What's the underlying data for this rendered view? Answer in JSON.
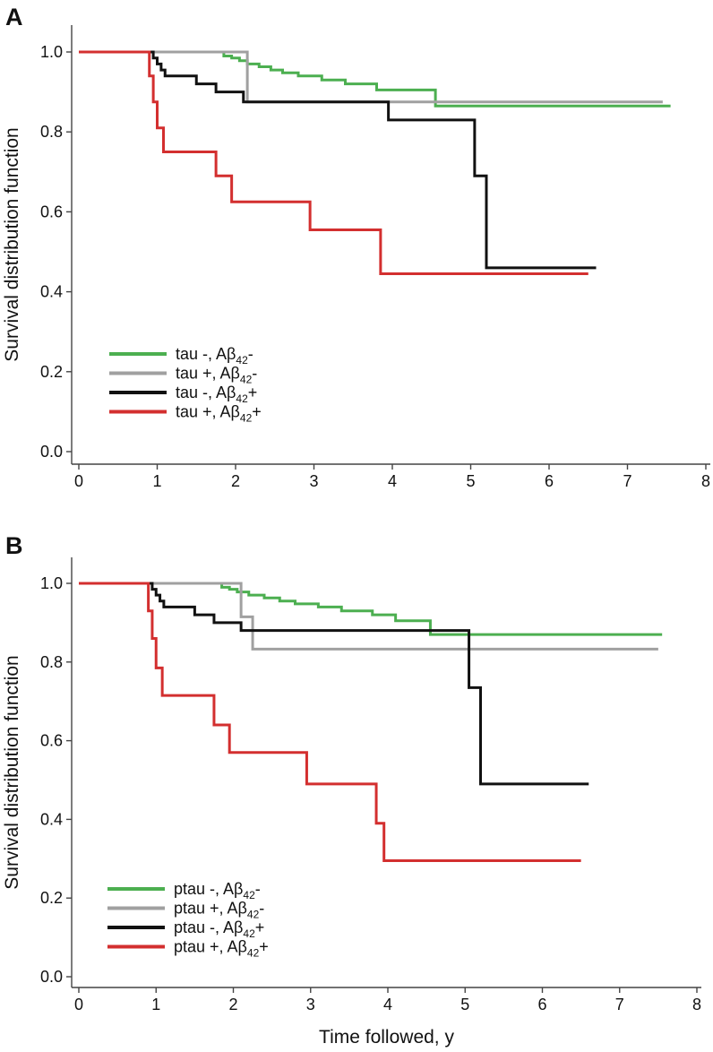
{
  "chart_data": [
    {
      "panel_label": "A",
      "type": "line",
      "title": "",
      "xlabel": "",
      "ylabel": "Survival distribution function",
      "xlim": [
        0,
        8
      ],
      "ylim": [
        0,
        1
      ],
      "xticks": [
        "0",
        "1",
        "2",
        "3",
        "4",
        "5",
        "6",
        "7",
        "8"
      ],
      "yticks": [
        "0.0",
        "0.2",
        "0.4",
        "0.6",
        "0.8",
        "1.0"
      ],
      "grid": false,
      "legend_position": "bottom-left",
      "series": [
        {
          "name": "tau -, Aβ42-",
          "legend": {
            "pre": "tau -, Aβ",
            "sub": "42",
            "post": "-"
          },
          "color": "#4caf50",
          "x": [
            0,
            1.85,
            1.95,
            2.05,
            2.15,
            2.3,
            2.45,
            2.6,
            2.8,
            3.1,
            3.4,
            3.8,
            4.55,
            7.55
          ],
          "y": [
            1.0,
            0.99,
            0.985,
            0.978,
            0.97,
            0.963,
            0.955,
            0.948,
            0.94,
            0.93,
            0.92,
            0.905,
            0.865,
            0.865
          ]
        },
        {
          "name": "tau +, Aβ42-",
          "legend": {
            "pre": "tau +, Aβ",
            "sub": "42",
            "post": "-"
          },
          "color": "#a0a0a0",
          "x": [
            0,
            2.15,
            7.45
          ],
          "y": [
            1.0,
            0.875,
            0.875
          ]
        },
        {
          "name": "tau -, Aβ42+",
          "legend": {
            "pre": "tau -, Aβ",
            "sub": "42",
            "post": "+"
          },
          "color": "#111111",
          "x": [
            0,
            0.95,
            1.0,
            1.05,
            1.1,
            1.5,
            1.75,
            2.1,
            3.95,
            5.05,
            5.2,
            6.6
          ],
          "y": [
            1.0,
            0.985,
            0.97,
            0.955,
            0.94,
            0.92,
            0.9,
            0.875,
            0.83,
            0.69,
            0.46,
            0.46
          ]
        },
        {
          "name": "tau +, Aβ42+",
          "legend": {
            "pre": "tau +, Aβ",
            "sub": "42",
            "post": "+"
          },
          "color": "#d32f2f",
          "x": [
            0,
            0.9,
            0.95,
            1.0,
            1.08,
            1.75,
            1.95,
            2.95,
            3.85,
            6.5
          ],
          "y": [
            1.0,
            0.94,
            0.875,
            0.81,
            0.75,
            0.69,
            0.625,
            0.555,
            0.445,
            0.445
          ]
        }
      ]
    },
    {
      "panel_label": "B",
      "type": "line",
      "title": "",
      "xlabel": "Time followed, y",
      "ylabel": "Survival distribution function",
      "xlim": [
        0,
        8
      ],
      "ylim": [
        0,
        1
      ],
      "xticks": [
        "0",
        "1",
        "2",
        "3",
        "4",
        "5",
        "6",
        "7",
        "8"
      ],
      "yticks": [
        "0.0",
        "0.2",
        "0.4",
        "0.6",
        "0.8",
        "1.0"
      ],
      "grid": false,
      "legend_position": "bottom-left",
      "series": [
        {
          "name": "ptau -, Aβ42-",
          "legend": {
            "pre": "ptau -, Aβ",
            "sub": "42",
            "post": "-"
          },
          "color": "#4caf50",
          "x": [
            0,
            1.85,
            1.95,
            2.05,
            2.2,
            2.4,
            2.6,
            2.8,
            3.1,
            3.4,
            3.8,
            4.1,
            4.55,
            7.55
          ],
          "y": [
            1.0,
            0.99,
            0.985,
            0.978,
            0.97,
            0.963,
            0.955,
            0.948,
            0.94,
            0.93,
            0.92,
            0.905,
            0.87,
            0.87
          ]
        },
        {
          "name": "ptau +, Aβ42-",
          "legend": {
            "pre": "ptau +, Aβ",
            "sub": "42",
            "post": "-"
          },
          "color": "#a0a0a0",
          "x": [
            0,
            2.1,
            2.25,
            7.5
          ],
          "y": [
            1.0,
            0.915,
            0.833,
            0.833
          ]
        },
        {
          "name": "ptau -, Aβ42+",
          "legend": {
            "pre": "ptau -, Aβ",
            "sub": "42",
            "post": "+"
          },
          "color": "#111111",
          "x": [
            0,
            0.95,
            1.0,
            1.05,
            1.1,
            1.5,
            1.75,
            2.1,
            5.05,
            5.2,
            6.6
          ],
          "y": [
            1.0,
            0.985,
            0.97,
            0.955,
            0.94,
            0.92,
            0.9,
            0.88,
            0.735,
            0.49,
            0.49
          ]
        },
        {
          "name": "ptau +, Aβ42+",
          "legend": {
            "pre": "ptau +, Aβ",
            "sub": "42",
            "post": "+"
          },
          "color": "#d32f2f",
          "x": [
            0,
            0.9,
            0.95,
            1.0,
            1.08,
            1.75,
            1.95,
            2.95,
            3.85,
            3.95,
            6.5
          ],
          "y": [
            1.0,
            0.93,
            0.86,
            0.785,
            0.715,
            0.64,
            0.57,
            0.49,
            0.39,
            0.295,
            0.295
          ]
        }
      ]
    }
  ]
}
